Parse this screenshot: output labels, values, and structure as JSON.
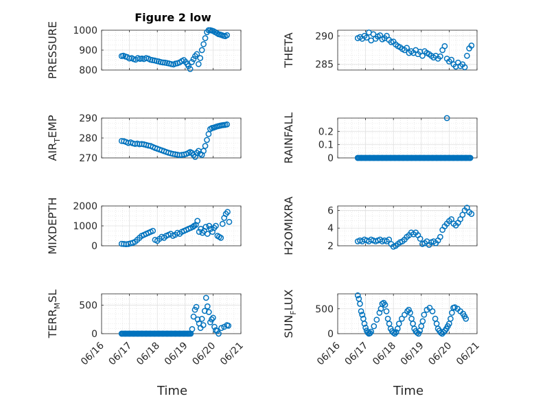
{
  "figure": {
    "title": "Figure 2 low",
    "xlabel": "Time"
  },
  "chart_data": [
    {
      "type": "scatter",
      "ylabel": "PRESSURE",
      "ylim": [
        800,
        1000
      ],
      "yticks": [
        "800",
        "900",
        "1000"
      ],
      "xlim": [
        0,
        5
      ],
      "xticks": [],
      "x": [
        0.72,
        0.78,
        0.85,
        0.92,
        1.0,
        1.08,
        1.15,
        1.22,
        1.3,
        1.38,
        1.45,
        1.52,
        1.6,
        1.68,
        1.75,
        1.82,
        1.9,
        1.98,
        2.05,
        2.12,
        2.2,
        2.28,
        2.35,
        2.42,
        2.5,
        2.58,
        2.65,
        2.72,
        2.8,
        2.88,
        2.95,
        3.02,
        3.08,
        3.12,
        3.18,
        3.24,
        3.3,
        3.36,
        3.42,
        3.48,
        3.54,
        3.6,
        3.66,
        3.72,
        3.78,
        3.84,
        3.9,
        3.96,
        4.02,
        4.08,
        4.14,
        4.2,
        4.26,
        4.32,
        4.38,
        4.44,
        4.5
      ],
      "y": [
        870,
        872,
        868,
        865,
        858,
        860,
        855,
        852,
        860,
        856,
        858,
        855,
        860,
        857,
        852,
        850,
        848,
        845,
        843,
        840,
        838,
        837,
        835,
        833,
        830,
        828,
        832,
        834,
        838,
        845,
        850,
        840,
        830,
        820,
        805,
        840,
        855,
        870,
        880,
        830,
        860,
        900,
        930,
        960,
        990,
        1000,
        1000,
        998,
        995,
        990,
        985,
        980,
        978,
        975,
        972,
        970,
        975
      ]
    },
    {
      "type": "scatter",
      "ylabel": "THETA",
      "ylim": [
        284,
        291
      ],
      "yticks": [
        "285",
        "290"
      ],
      "xlim": [
        0,
        5
      ],
      "xticks": [],
      "x": [
        0.72,
        0.8,
        0.88,
        0.96,
        1.04,
        1.12,
        1.2,
        1.28,
        1.36,
        1.44,
        1.52,
        1.6,
        1.68,
        1.76,
        1.84,
        1.92,
        2.0,
        2.08,
        2.16,
        2.24,
        2.32,
        2.4,
        2.48,
        2.56,
        2.64,
        2.72,
        2.8,
        2.88,
        2.96,
        3.04,
        3.12,
        3.2,
        3.28,
        3.36,
        3.44,
        3.52,
        3.6,
        3.68,
        3.76,
        3.84,
        3.92,
        4.0,
        4.08,
        4.16,
        4.24,
        4.32,
        4.4,
        4.48,
        4.56,
        4.64,
        4.72,
        4.8
      ],
      "y": [
        289.6,
        289.8,
        289.5,
        290.0,
        289.7,
        290.6,
        289.2,
        290.3,
        289.5,
        289.9,
        290.1,
        289.4,
        289.6,
        290.0,
        289.3,
        288.9,
        289.0,
        288.5,
        288.2,
        288.0,
        287.7,
        287.5,
        287.9,
        287.0,
        287.3,
        287.0,
        287.5,
        286.8,
        287.2,
        286.5,
        287.3,
        287.0,
        286.8,
        286.5,
        286.2,
        286.5,
        286.0,
        286.4,
        287.5,
        288.2,
        286.0,
        285.5,
        285.8,
        285.0,
        284.6,
        285.3,
        284.7,
        285.0,
        284.5,
        286.5,
        287.8,
        288.3
      ]
    },
    {
      "type": "scatter",
      "ylabel": "AIR_TEMP",
      "ylabel_main": "AIR",
      "ylabel_sub": "T",
      "ylabel_rest": "EMP",
      "ylim": [
        270,
        290
      ],
      "yticks": [
        "270",
        "280",
        "290"
      ],
      "xlim": [
        0,
        5
      ],
      "xticks": [],
      "x": [
        0.72,
        0.8,
        0.88,
        0.96,
        1.04,
        1.12,
        1.2,
        1.28,
        1.36,
        1.44,
        1.52,
        1.6,
        1.68,
        1.76,
        1.84,
        1.92,
        2.0,
        2.08,
        2.16,
        2.24,
        2.32,
        2.4,
        2.48,
        2.56,
        2.64,
        2.72,
        2.8,
        2.88,
        2.96,
        3.04,
        3.12,
        3.18,
        3.24,
        3.3,
        3.36,
        3.42,
        3.48,
        3.54,
        3.6,
        3.66,
        3.72,
        3.78,
        3.84,
        3.9,
        3.96,
        4.02,
        4.08,
        4.14,
        4.2,
        4.26,
        4.32,
        4.38,
        4.44,
        4.5
      ],
      "y": [
        278.5,
        278.4,
        278.0,
        277.5,
        277.8,
        277.3,
        277.0,
        277.2,
        276.9,
        277.0,
        276.8,
        276.5,
        276.2,
        276.0,
        275.5,
        275.0,
        274.6,
        274.2,
        273.8,
        273.4,
        273.0,
        272.6,
        272.3,
        272.0,
        271.8,
        271.6,
        271.4,
        271.5,
        271.7,
        272.0,
        272.5,
        273.0,
        272.5,
        271.5,
        270.5,
        272.5,
        273.5,
        272.0,
        271.5,
        273.5,
        276.0,
        279.0,
        282.0,
        284.5,
        285.0,
        285.2,
        285.5,
        285.8,
        286.0,
        286.2,
        286.4,
        286.5,
        286.6,
        286.8
      ]
    },
    {
      "type": "scatter",
      "ylabel": "RAINFALL",
      "ylim": [
        0,
        0.3
      ],
      "yticks": [
        "0",
        "0.1",
        "0.2"
      ],
      "xlim": [
        0,
        5
      ],
      "xticks": [],
      "x": [
        0.72,
        0.85,
        1.0,
        1.15,
        1.3,
        1.45,
        1.6,
        1.75,
        1.9,
        2.05,
        2.2,
        2.35,
        2.5,
        2.65,
        2.8,
        2.95,
        3.1,
        3.25,
        3.4,
        3.55,
        3.7,
        3.85,
        3.92,
        4.0,
        4.15,
        4.3,
        4.45,
        4.6,
        4.75
      ],
      "y": [
        0,
        0,
        0,
        0,
        0,
        0,
        0,
        0,
        0,
        0,
        0,
        0,
        0,
        0,
        0,
        0,
        0,
        0,
        0,
        0,
        0,
        0,
        0.3,
        0,
        0,
        0,
        0,
        0,
        0
      ]
    },
    {
      "type": "scatter",
      "ylabel": "MIXDEPTH",
      "ylim": [
        0,
        2000
      ],
      "yticks": [
        "0",
        "1000",
        "2000"
      ],
      "xlim": [
        0,
        5
      ],
      "xticks": [],
      "x": [
        0.72,
        0.8,
        0.88,
        0.96,
        1.04,
        1.12,
        1.2,
        1.28,
        1.36,
        1.44,
        1.52,
        1.6,
        1.68,
        1.76,
        1.84,
        1.92,
        2.0,
        2.08,
        2.16,
        2.24,
        2.32,
        2.4,
        2.48,
        2.56,
        2.64,
        2.72,
        2.8,
        2.88,
        2.96,
        3.04,
        3.12,
        3.2,
        3.28,
        3.32,
        3.38,
        3.44,
        3.5,
        3.56,
        3.62,
        3.68,
        3.74,
        3.8,
        3.86,
        3.92,
        3.98,
        4.04,
        4.1,
        4.16,
        4.22,
        4.28,
        4.34,
        4.4,
        4.46,
        4.52,
        4.58
      ],
      "y": [
        100,
        90,
        80,
        90,
        120,
        150,
        200,
        300,
        400,
        500,
        550,
        600,
        650,
        700,
        750,
        300,
        250,
        350,
        450,
        400,
        500,
        550,
        600,
        500,
        550,
        650,
        600,
        700,
        750,
        800,
        850,
        900,
        950,
        1000,
        1050,
        1250,
        700,
        850,
        650,
        750,
        950,
        600,
        1000,
        850,
        700,
        900,
        1000,
        500,
        450,
        400,
        1100,
        1400,
        1600,
        1700,
        1200
      ]
    },
    {
      "type": "scatter",
      "ylabel": "H2OMIXRA",
      "ylim": [
        2,
        6.5
      ],
      "yticks": [
        "2",
        "4",
        "6"
      ],
      "xlim": [
        0,
        5
      ],
      "xticks": [],
      "x": [
        0.72,
        0.8,
        0.88,
        0.96,
        1.04,
        1.12,
        1.2,
        1.28,
        1.36,
        1.44,
        1.52,
        1.6,
        1.68,
        1.76,
        1.84,
        1.92,
        2.0,
        2.08,
        2.16,
        2.24,
        2.32,
        2.4,
        2.48,
        2.56,
        2.64,
        2.72,
        2.8,
        2.88,
        2.96,
        3.04,
        3.12,
        3.2,
        3.28,
        3.36,
        3.44,
        3.52,
        3.6,
        3.68,
        3.76,
        3.84,
        3.92,
        4.0,
        4.08,
        4.16,
        4.24,
        4.32,
        4.4,
        4.48,
        4.56,
        4.64,
        4.72,
        4.8
      ],
      "y": [
        2.5,
        2.6,
        2.5,
        2.7,
        2.6,
        2.5,
        2.7,
        2.6,
        2.5,
        2.6,
        2.7,
        2.5,
        2.6,
        2.5,
        2.7,
        2.2,
        1.9,
        2.0,
        2.2,
        2.4,
        2.5,
        2.7,
        3.0,
        3.2,
        3.5,
        3.3,
        3.5,
        3.2,
        2.8,
        2.2,
        2.3,
        2.5,
        2.1,
        2.4,
        2.5,
        2.3,
        2.6,
        3.0,
        3.8,
        4.2,
        4.5,
        4.8,
        5.0,
        4.5,
        4.3,
        4.6,
        5.0,
        5.5,
        6.0,
        6.3,
        5.8,
        5.6
      ]
    },
    {
      "type": "scatter",
      "ylabel": "TERR_MSL",
      "ylabel_main": "TERR",
      "ylabel_sub": "M",
      "ylabel_rest": "SL",
      "ylim": [
        0,
        700
      ],
      "yticks": [
        "0",
        "500"
      ],
      "xlim": [
        0,
        5
      ],
      "xticks": [
        "06/16",
        "06/17",
        "06/18",
        "06/19",
        "06/20",
        "06/21"
      ],
      "x": [
        0.72,
        0.85,
        1.0,
        1.15,
        1.3,
        1.45,
        1.6,
        1.75,
        1.9,
        2.05,
        2.2,
        2.35,
        2.5,
        2.65,
        2.8,
        2.95,
        3.1,
        3.2,
        3.25,
        3.3,
        3.35,
        3.4,
        3.45,
        3.5,
        3.55,
        3.6,
        3.65,
        3.7,
        3.75,
        3.8,
        3.85,
        3.9,
        3.95,
        4.0,
        4.05,
        4.1,
        4.15,
        4.2,
        4.3,
        4.4,
        4.5,
        4.55
      ],
      "y": [
        0,
        0,
        0,
        0,
        0,
        0,
        0,
        0,
        0,
        0,
        0,
        0,
        0,
        0,
        0,
        0,
        0,
        0,
        80,
        300,
        420,
        470,
        250,
        180,
        100,
        260,
        150,
        400,
        630,
        480,
        380,
        200,
        250,
        280,
        120,
        60,
        50,
        0,
        100,
        120,
        150,
        140
      ]
    },
    {
      "type": "scatter",
      "ylabel": "SUN_FLUX",
      "ylabel_main": "SUN",
      "ylabel_sub": "F",
      "ylabel_rest": "LUX",
      "ylim": [
        0,
        800
      ],
      "yticks": [
        "0",
        "500"
      ],
      "xlim": [
        0,
        5
      ],
      "xticks": [
        "06/16",
        "06/17",
        "06/18",
        "06/19",
        "06/20",
        "06/21"
      ],
      "x": [
        0.72,
        0.76,
        0.8,
        0.84,
        0.88,
        0.92,
        0.96,
        1.0,
        1.04,
        1.08,
        1.12,
        1.16,
        1.2,
        1.3,
        1.4,
        1.5,
        1.55,
        1.6,
        1.65,
        1.7,
        1.75,
        1.8,
        1.85,
        1.9,
        1.95,
        2.0,
        2.05,
        2.1,
        2.15,
        2.2,
        2.3,
        2.4,
        2.5,
        2.55,
        2.6,
        2.65,
        2.7,
        2.75,
        2.8,
        2.85,
        2.9,
        2.95,
        3.0,
        3.05,
        3.1,
        3.2,
        3.3,
        3.4,
        3.5,
        3.55,
        3.6,
        3.65,
        3.7,
        3.75,
        3.8,
        3.85,
        3.9,
        3.95,
        4.0,
        4.05,
        4.1,
        4.15,
        4.2,
        4.3,
        4.4,
        4.5,
        4.55,
        4.6
      ],
      "y": [
        770,
        700,
        600,
        450,
        380,
        300,
        200,
        120,
        60,
        20,
        0,
        10,
        40,
        150,
        280,
        420,
        500,
        600,
        620,
        580,
        450,
        300,
        200,
        100,
        50,
        20,
        0,
        30,
        100,
        200,
        300,
        380,
        450,
        480,
        420,
        300,
        200,
        100,
        50,
        20,
        0,
        60,
        150,
        250,
        380,
        480,
        520,
        450,
        300,
        200,
        100,
        60,
        20,
        0,
        30,
        60,
        100,
        150,
        200,
        300,
        420,
        520,
        530,
        500,
        450,
        400,
        350,
        300
      ]
    }
  ]
}
